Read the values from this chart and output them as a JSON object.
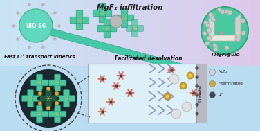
{
  "title": "MgF₂ infiltration",
  "subtitle_left": "Fast Li⁺ transport kinetics",
  "subtitle_mid": "Facilitated desolvation",
  "label_uio": "UiO-66",
  "label_product": "I-MgF₂@UiO",
  "legend_items": [
    "MgF₂",
    "F-terminated",
    "Li⁺"
  ],
  "legend_colors": [
    "#d0d0d0",
    "#d4a830",
    "#444455"
  ],
  "teal": "#40c8aa",
  "teal_dark": "#2a9a7a",
  "teal_sphere": "#50d8b8",
  "figsize": [
    3.76,
    1.89
  ],
  "dpi": 100
}
